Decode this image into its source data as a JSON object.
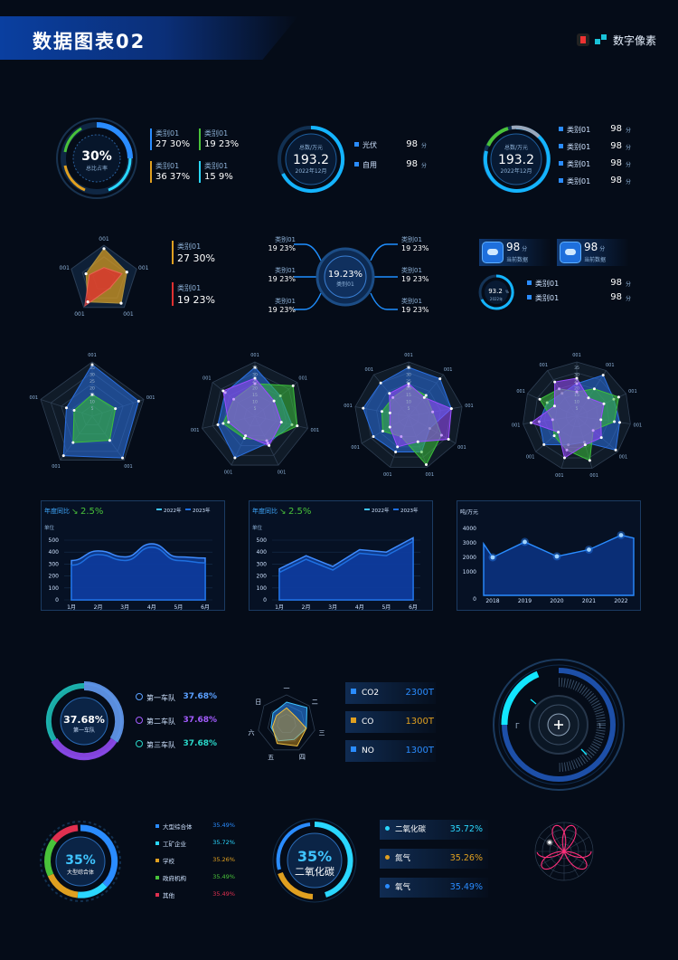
{
  "header": {
    "title": "数据图表02",
    "brand": "数字像素"
  },
  "row1": {
    "donut1": {
      "value": "30%",
      "label": "总比占率",
      "legend": [
        {
          "name": "类别01",
          "value": "27 30%",
          "color": "#2a8cff"
        },
        {
          "name": "类别01",
          "value": "19 23%",
          "color": "#49c23a"
        },
        {
          "name": "类别01",
          "value": "36 37%",
          "color": "#e0a020"
        },
        {
          "name": "类别01",
          "value": "15 9%",
          "color": "#2ad7ff"
        }
      ]
    },
    "gauge1": {
      "caption": "总数/万元",
      "value": "193.2",
      "sub": "2022年12月",
      "items": [
        {
          "name": "光伏",
          "value": "98",
          "unit": "分"
        },
        {
          "name": "自用",
          "value": "98",
          "unit": "分"
        }
      ]
    },
    "gauge2": {
      "caption": "总数/万元",
      "value": "193.2",
      "sub": "2022年12月",
      "items": [
        {
          "name": "类别01",
          "value": "98",
          "unit": "分"
        },
        {
          "name": "类别01",
          "value": "98",
          "unit": "分"
        },
        {
          "name": "类别01",
          "value": "98",
          "unit": "分"
        },
        {
          "name": "类别01",
          "value": "98",
          "unit": "分"
        }
      ]
    }
  },
  "row2": {
    "radar_small": {
      "labels": [
        "001",
        "001",
        "001",
        "001",
        "001"
      ],
      "legend": [
        {
          "name": "类别01",
          "value": "27 30%",
          "color": "#e0a020"
        },
        {
          "name": "类别01",
          "value": "19 23%",
          "color": "#e03030"
        }
      ]
    },
    "hub": {
      "value": "19.23%",
      "label": "类别01",
      "left": [
        {
          "name": "类别01",
          "value": "19 23%"
        },
        {
          "name": "类别01",
          "value": "19 23%"
        },
        {
          "name": "类别01",
          "value": "19 23%"
        }
      ],
      "right": [
        {
          "name": "类别01",
          "value": "19 23%"
        },
        {
          "name": "类别01",
          "value": "19 23%"
        },
        {
          "name": "类别01",
          "value": "19 23%"
        }
      ]
    },
    "cards": [
      {
        "value": "98",
        "unit": "分",
        "label": "当前数据",
        "icon": "co2-cloud-icon"
      },
      {
        "value": "98",
        "unit": "分",
        "label": "当前数据",
        "icon": "cloud-download-icon"
      }
    ],
    "mini": {
      "value": "93.2",
      "unit": "%",
      "sub": "2022年",
      "items": [
        {
          "name": "类别01",
          "value": "98",
          "unit": "分"
        },
        {
          "name": "类别01",
          "value": "98",
          "unit": "分"
        }
      ]
    }
  },
  "radars": {
    "ticks": [
      "35",
      "30",
      "25",
      "20",
      "15",
      "10",
      "5"
    ],
    "label": "001"
  },
  "area_charts": [
    {
      "title": "年度同比",
      "change": "2.5%",
      "ylabel": "单位",
      "legend": [
        "2022年",
        "2023年"
      ],
      "yticks": [
        "500",
        "400",
        "300",
        "200",
        "100",
        "0"
      ],
      "xticks": [
        "1月",
        "2月",
        "3月",
        "4月",
        "5月",
        "6月"
      ]
    },
    {
      "title": "年度同比",
      "change": "2.5%",
      "ylabel": "单位",
      "legend": [
        "2022年",
        "2023年"
      ],
      "yticks": [
        "500",
        "400",
        "300",
        "200",
        "100",
        "0"
      ],
      "xticks": [
        "1月",
        "2月",
        "3月",
        "4月",
        "5月",
        "6月"
      ]
    }
  ],
  "line_chart": {
    "ylabel": "吨/万元",
    "yticks": [
      "4000",
      "3000",
      "2000",
      "1000",
      "0"
    ],
    "xticks": [
      "2018",
      "2019",
      "2020",
      "2021",
      "2022"
    ]
  },
  "chart_data": [
    {
      "type": "line",
      "title": "",
      "xlabel": "",
      "ylabel": "单位",
      "x": [
        "1月",
        "2月",
        "3月",
        "4月",
        "5月",
        "6月"
      ],
      "ylim": [
        0,
        500
      ],
      "series": [
        {
          "name": "2022年",
          "values": [
            330,
            410,
            360,
            470,
            360,
            350
          ]
        },
        {
          "name": "2023年",
          "values": [
            290,
            380,
            330,
            440,
            330,
            310
          ]
        }
      ]
    },
    {
      "type": "line",
      "title": "",
      "xlabel": "",
      "ylabel": "单位",
      "x": [
        "1月",
        "2月",
        "3月",
        "4月",
        "5月",
        "6月"
      ],
      "ylim": [
        0,
        500
      ],
      "series": [
        {
          "name": "2022年",
          "values": [
            260,
            370,
            280,
            420,
            400,
            520
          ]
        },
        {
          "name": "2023年",
          "values": [
            230,
            340,
            250,
            390,
            370,
            490
          ]
        }
      ]
    },
    {
      "type": "line",
      "title": "",
      "xlabel": "",
      "ylabel": "吨/万元",
      "x": [
        "2018",
        "2019",
        "2020",
        "2021",
        "2022"
      ],
      "ylim": [
        0,
        4000
      ],
      "series": [
        {
          "values": [
            2500,
            3300,
            2550,
            2900,
            3650
          ]
        }
      ]
    }
  ],
  "row6": {
    "team": {
      "value": "37.68%",
      "label": "第一车队",
      "items": [
        {
          "name": "第一车队",
          "value": "37.68%",
          "color": "#5aa0ff"
        },
        {
          "name": "第二车队",
          "value": "37.68%",
          "color": "#a35cff"
        },
        {
          "name": "第三车队",
          "value": "37.68%",
          "color": "#2ad7c8"
        }
      ]
    },
    "hex_radar": {
      "labels": [
        "一",
        "二",
        "三",
        "四",
        "五",
        "六",
        "日"
      ]
    },
    "gas": [
      {
        "name": "CO2",
        "value": "2300T",
        "color": "#2a8cff"
      },
      {
        "name": "CO",
        "value": "1300T",
        "color": "#e0a020"
      },
      {
        "name": "NO",
        "value": "1300T",
        "color": "#2a8cff"
      }
    ],
    "dial": {
      "left_tick": "Γ",
      "right_tick": "˥"
    }
  },
  "row7": {
    "donut2": {
      "value": "35%",
      "label": "大型综合体",
      "items": [
        {
          "name": "大型综合体",
          "value": "35.49%",
          "color": "#2a8cff"
        },
        {
          "name": "工矿企业",
          "value": "35.72%",
          "color": "#2ad7ff"
        },
        {
          "name": "学校",
          "value": "35.26%",
          "color": "#e0a020"
        },
        {
          "name": "政府机构",
          "value": "35.49%",
          "color": "#49c23a"
        },
        {
          "name": "其他",
          "value": "35.49%",
          "color": "#e03050"
        }
      ]
    },
    "donut3": {
      "value": "35%",
      "label": "二氧化碳",
      "items": [
        {
          "name": "二氧化碳",
          "value": "35.72%",
          "color": "#2ad7ff"
        },
        {
          "name": "氮气",
          "value": "35.26%",
          "color": "#e0a020"
        },
        {
          "name": "氧气",
          "value": "35.49%",
          "color": "#2a8cff"
        }
      ]
    }
  }
}
